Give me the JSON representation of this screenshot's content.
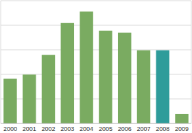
{
  "chart_data": {
    "type": "bar",
    "categories": [
      "2000",
      "2001",
      "2002",
      "2003",
      "2004",
      "2005",
      "2006",
      "2007",
      "2008",
      "2009"
    ],
    "values": [
      1.82,
      1.99,
      2.79,
      4.09,
      4.56,
      3.78,
      3.7,
      2.98,
      2.98,
      0.39
    ],
    "colors": [
      "#7aab61",
      "#7aab61",
      "#7aab61",
      "#7aab61",
      "#7aab61",
      "#7aab61",
      "#7aab61",
      "#7aab61",
      "#2e9c9a",
      "#7aab61"
    ],
    "ylim": [
      0,
      5
    ],
    "yticks": [
      0,
      1,
      2,
      3,
      4,
      5
    ],
    "grid": true,
    "tick_labels": "x"
  }
}
